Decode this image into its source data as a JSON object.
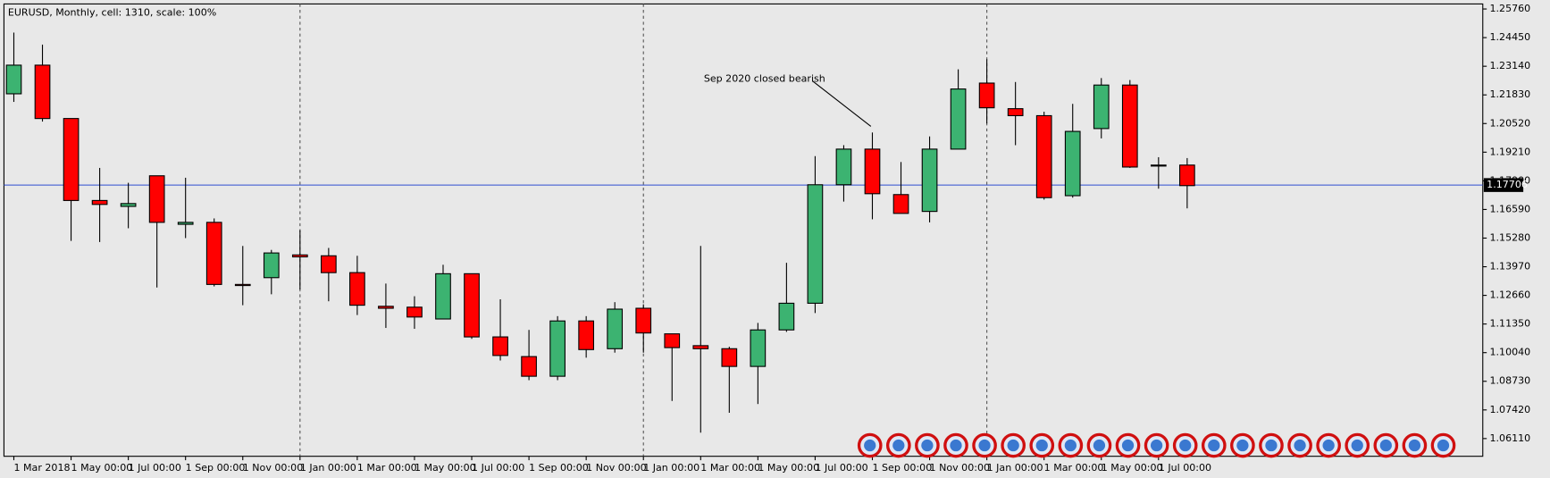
{
  "chart_data": {
    "type": "candlestick",
    "title": "EURUSD, Monthly, cell: 1310, scale: 100%",
    "annotation": "Sep 2020 closed bearish",
    "categories": [
      "1 Mar 2018",
      null,
      "1 May 00:00",
      null,
      "1 Jul 00:00",
      null,
      "1 Sep 00:00",
      null,
      "1 Nov 00:00",
      null,
      "1 Jan 00:00",
      null,
      "1 Mar 00:00",
      null,
      "1 May 00:00",
      null,
      "1 Jul 00:00",
      null,
      "1 Sep 00:00",
      null,
      "1 Nov 00:00",
      null,
      "1 Jan 00:00",
      null,
      "1 Mar 00:00",
      null,
      "1 May 00:00",
      null,
      "1 Jul 00:00",
      null,
      "1 Sep 00:00",
      null,
      "1 Nov 00:00",
      null,
      "1 Jan 00:00",
      null,
      "1 Mar 00:00",
      null,
      "1 May 00:00",
      null,
      "1 Jul 00:00",
      null
    ],
    "open": [
      1.2188,
      1.2319,
      1.2075,
      1.17,
      1.1673,
      1.1813,
      1.1591,
      1.16,
      1.1316,
      1.1347,
      1.1451,
      1.1447,
      1.137,
      1.1216,
      1.1212,
      1.1158,
      1.1365,
      1.1076,
      1.0986,
      1.0896,
      1.1149,
      1.1022,
      1.1207,
      1.109,
      1.1036,
      1.1022,
      1.0941,
      1.1108,
      1.123,
      1.1772,
      1.1935,
      1.1727,
      1.165,
      1.1935,
      1.2237,
      1.212,
      1.2088,
      1.1722,
      1.2029,
      1.2228,
      1.1858,
      1.1862
    ],
    "high": [
      1.2468,
      1.2413,
      1.2075,
      1.1849,
      1.1781,
      1.1813,
      1.1804,
      1.1618,
      1.1492,
      1.1474,
      1.1564,
      1.1483,
      1.1447,
      1.132,
      1.1262,
      1.1406,
      1.1365,
      1.1248,
      1.1108,
      1.1171,
      1.1171,
      1.1235,
      1.1225,
      1.109,
      1.1492,
      1.1031,
      1.114,
      1.1415,
      1.1903,
      1.1953,
      1.2011,
      1.1876,
      1.1993,
      1.23,
      1.2346,
      1.2242,
      1.2106,
      1.2142,
      1.226,
      1.2251,
      1.1898,
      1.1894
    ],
    "low": [
      1.2151,
      1.2061,
      1.1515,
      1.151,
      1.1573,
      1.1302,
      1.1528,
      1.1307,
      1.1221,
      1.1271,
      1.1293,
      1.1239,
      1.1176,
      1.1117,
      1.1113,
      1.1158,
      1.1067,
      1.0968,
      1.0878,
      1.0878,
      1.0981,
      1.1004,
      1.1004,
      1.0783,
      1.0638,
      1.0729,
      1.0769,
      1.1099,
      1.1185,
      1.1695,
      1.1614,
      1.1641,
      1.16,
      1.1935,
      1.2052,
      1.1953,
      1.1704,
      1.1713,
      1.1984,
      1.1849,
      1.1754,
      1.1664
    ],
    "close": [
      1.2319,
      1.2075,
      1.17,
      1.1682,
      1.1686,
      1.16,
      1.16,
      1.1316,
      1.1311,
      1.146,
      1.1442,
      1.137,
      1.1221,
      1.1207,
      1.1167,
      1.1365,
      1.1076,
      1.0991,
      1.0896,
      1.1149,
      1.1018,
      1.1203,
      1.1094,
      1.1027,
      1.1022,
      1.0941,
      1.1108,
      1.123,
      1.1772,
      1.1935,
      1.1731,
      1.1641,
      1.1935,
      1.221,
      1.2124,
      1.2088,
      1.1713,
      1.2016,
      1.2228,
      1.1853,
      1.1862,
      1.1768
    ],
    "up_color": "#3cb371",
    "down_color": "#ff0000",
    "price_line": 1.17706,
    "price_line_color": "#2f4fd0",
    "ylim": [
      1.053,
      1.2599
    ],
    "yticks": [
      {
        "value": 1.2576,
        "label": "1.25760"
      },
      {
        "value": 1.2445,
        "label": "1.24450"
      },
      {
        "value": 1.2314,
        "label": "1.23140"
      },
      {
        "value": 1.2183,
        "label": "1.21830"
      },
      {
        "value": 1.2052,
        "label": "1.20520"
      },
      {
        "value": 1.1921,
        "label": "1.19210"
      },
      {
        "value": 1.179,
        "label": "1.17900"
      },
      {
        "value": 1.1659,
        "label": "1.16590"
      },
      {
        "value": 1.1528,
        "label": "1.15280"
      },
      {
        "value": 1.1397,
        "label": "1.13970"
      },
      {
        "value": 1.1266,
        "label": "1.12660"
      },
      {
        "value": 1.1135,
        "label": "1.11350"
      },
      {
        "value": 1.1004,
        "label": "1.10040"
      },
      {
        "value": 1.0873,
        "label": "1.08730"
      },
      {
        "value": 1.0742,
        "label": "1.07420"
      },
      {
        "value": 1.0611,
        "label": "1.06110"
      }
    ],
    "grid": false
  }
}
